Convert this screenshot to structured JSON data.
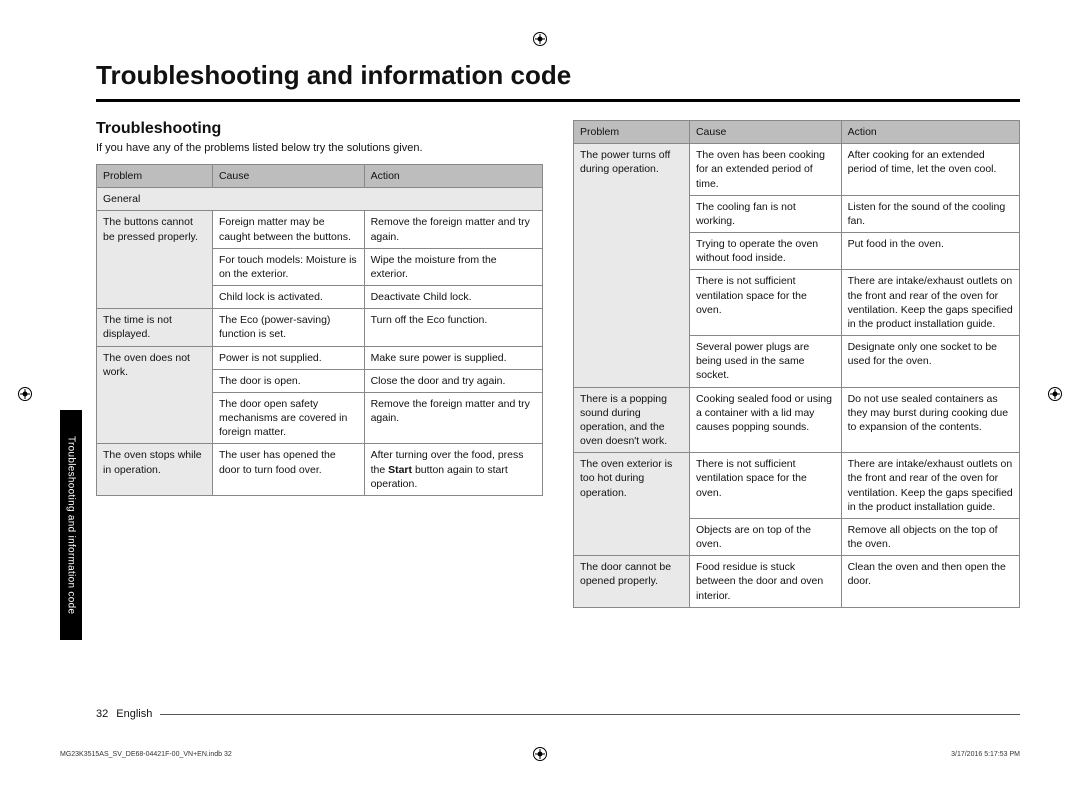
{
  "title": "Troubleshooting and information code",
  "subheading": "Troubleshooting",
  "intro": "If you have any of the problems listed below try the solutions given.",
  "sideTab": "Troubleshooting and information code",
  "pageNumber": "32",
  "language": "English",
  "footerLeft": "MG23K3515AS_SV_DE68-04421F-00_VN+EN.indb   32",
  "footerRight": "3/17/2016   5:17:53 PM",
  "headers": {
    "problem": "Problem",
    "cause": "Cause",
    "action": "Action"
  },
  "left": {
    "sectionLabel": "General",
    "rows": [
      {
        "problem": "The buttons cannot be pressed properly.",
        "span": 3,
        "items": [
          {
            "cause": "Foreign matter may be caught between the buttons.",
            "action": "Remove the foreign matter and try again."
          },
          {
            "cause": "For touch models: Moisture is on the exterior.",
            "action": "Wipe the moisture from the exterior."
          },
          {
            "cause": "Child lock is activated.",
            "action": "Deactivate Child lock."
          }
        ]
      },
      {
        "problem": "The time is not displayed.",
        "span": 1,
        "items": [
          {
            "cause": "The Eco (power-saving) function is set.",
            "action": "Turn off the Eco function."
          }
        ]
      },
      {
        "problem": "The oven does not work.",
        "span": 3,
        "items": [
          {
            "cause": "Power is not supplied.",
            "action": "Make sure power is supplied."
          },
          {
            "cause": "The door is open.",
            "action": "Close the door and try again."
          },
          {
            "cause": "The door open safety mechanisms are covered in foreign matter.",
            "action": "Remove the foreign matter and try again."
          }
        ]
      },
      {
        "problem": "The oven stops while in operation.",
        "span": 1,
        "items": [
          {
            "cause": "The user has opened the door to turn food over.",
            "action_html": "After turning over the food, press the <b>Start</b> button again to start operation."
          }
        ]
      }
    ]
  },
  "right": {
    "rows": [
      {
        "problem": "The power turns off during operation.",
        "span": 5,
        "items": [
          {
            "cause": "The oven has been cooking for an extended period of time.",
            "action": "After cooking for an extended period of time, let the oven cool."
          },
          {
            "cause": "The cooling fan is not working.",
            "action": "Listen for the sound of the cooling fan."
          },
          {
            "cause": "Trying to operate the oven without food inside.",
            "action": "Put food in the oven."
          },
          {
            "cause": "There is not sufficient ventilation space for the oven.",
            "action": "There are intake/exhaust outlets on the front and rear of the oven for ventilation. Keep the gaps specified in the product installation guide."
          },
          {
            "cause": "Several power plugs are being used in the same socket.",
            "action": "Designate only one socket to be used for the oven."
          }
        ]
      },
      {
        "problem": "There is a popping sound during operation, and the oven doesn't work.",
        "span": 1,
        "items": [
          {
            "cause": "Cooking sealed food or using a container with a lid may causes popping sounds.",
            "action": "Do not use sealed containers as they may burst during cooking due to expansion of the contents."
          }
        ]
      },
      {
        "problem": "The oven exterior is too hot during operation.",
        "span": 2,
        "items": [
          {
            "cause": "There is not sufficient ventilation space for the oven.",
            "action": "There are intake/exhaust outlets on the front and rear of the oven for ventilation. Keep the gaps specified in the product installation guide."
          },
          {
            "cause": "Objects are on top of the oven.",
            "action": "Remove all objects on the top of the oven."
          }
        ]
      },
      {
        "problem": "The door cannot be opened properly.",
        "span": 1,
        "items": [
          {
            "cause": "Food residue is stuck between the door and oven interior.",
            "action": "Clean the oven and then open the door."
          }
        ]
      }
    ]
  },
  "colors": {
    "headerBg": "#bdbdbd",
    "problemBg": "#e9e9e9",
    "border": "#888888",
    "sideTabBg": "#000000",
    "sideTabText": "#ffffff",
    "text": "#111111"
  },
  "fonts": {
    "title_pt": 26,
    "subhead_pt": 16,
    "body_pt": 10.5,
    "footer_pt": 7
  }
}
